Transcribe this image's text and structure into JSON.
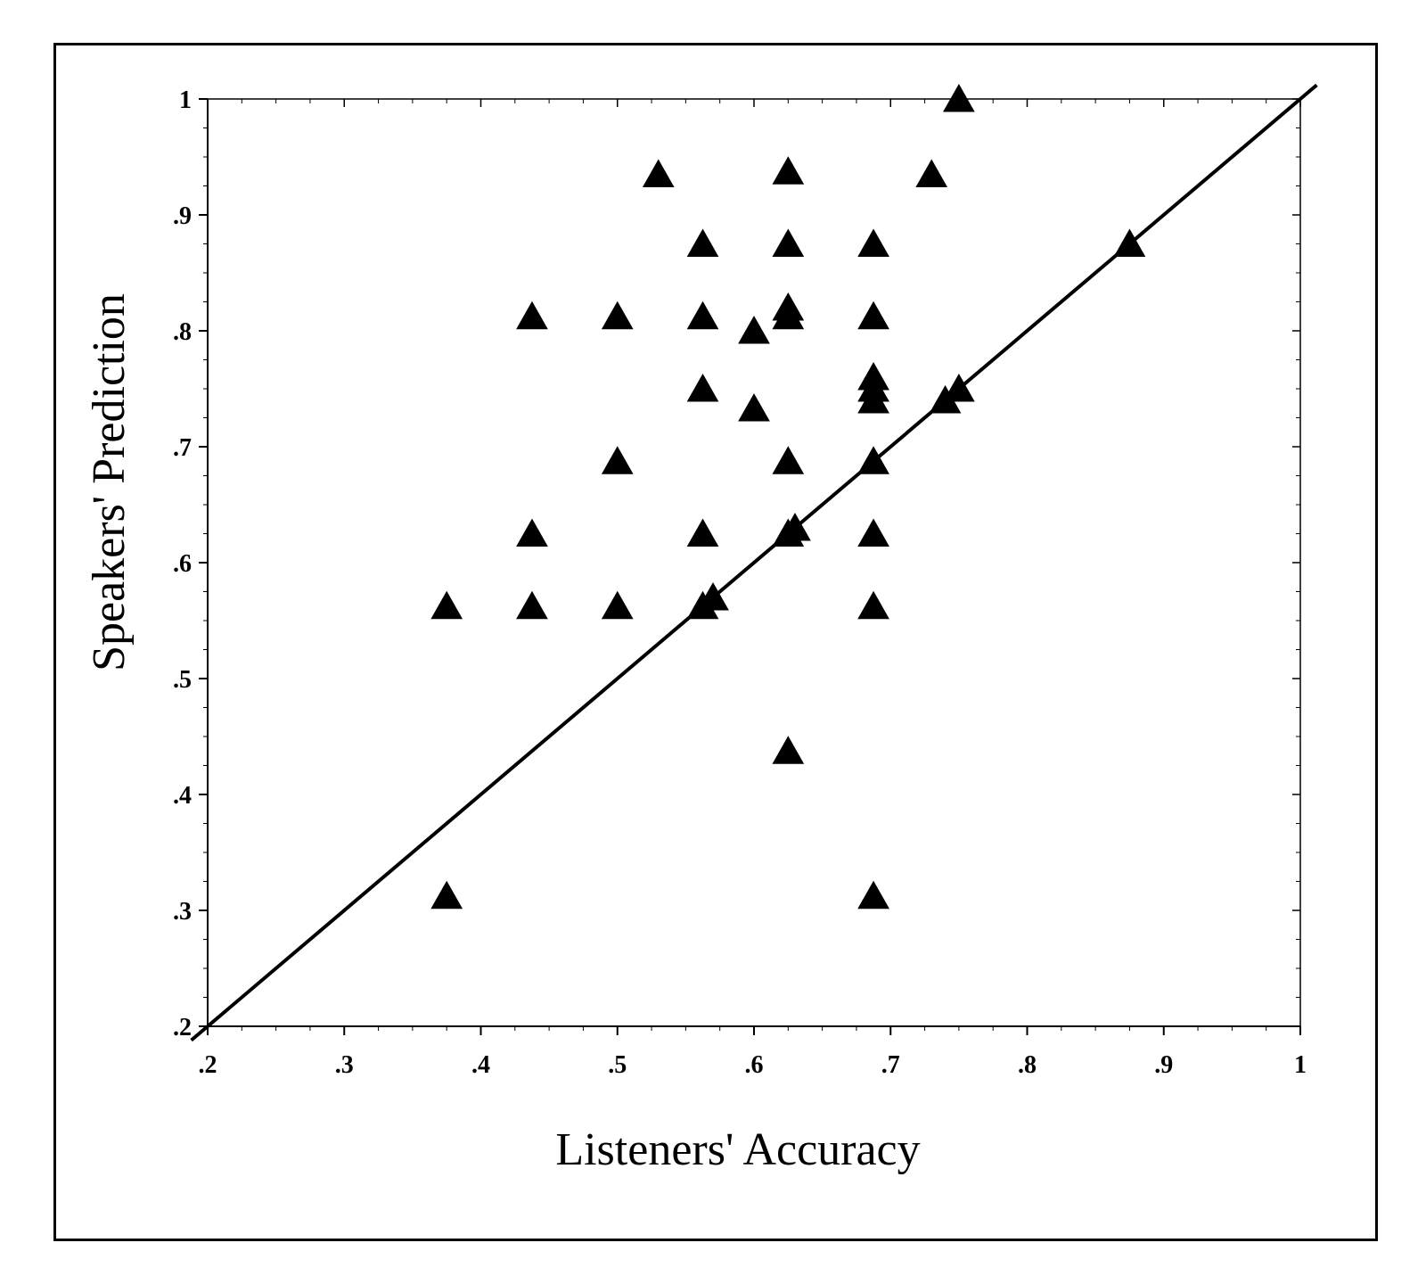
{
  "chart_data": {
    "type": "scatter",
    "title": "",
    "xlabel": "Listeners' Accuracy",
    "ylabel": "Speakers' Prediction",
    "xlim": [
      0.2,
      1.0
    ],
    "ylim": [
      0.2,
      1.0
    ],
    "x_ticks": [
      0.2,
      0.3,
      0.4,
      0.5,
      0.6,
      0.7,
      0.8,
      0.9,
      1.0
    ],
    "x_tick_labels": [
      ".2",
      ".3",
      ".4",
      ".5",
      ".6",
      ".7",
      ".8",
      ".9",
      "1"
    ],
    "y_ticks": [
      0.2,
      0.3,
      0.4,
      0.5,
      0.6,
      0.7,
      0.8,
      0.9,
      1.0
    ],
    "y_tick_labels": [
      ".2",
      ".3",
      ".4",
      ".5",
      ".6",
      ".7",
      ".8",
      ".9",
      "1"
    ],
    "grid": false,
    "marker": "triangle",
    "marker_color": "#000000",
    "reference_line": {
      "from": [
        0.2,
        0.2
      ],
      "to": [
        1.0,
        1.0
      ]
    },
    "points": [
      [
        0.375,
        0.3125
      ],
      [
        0.375,
        0.5625
      ],
      [
        0.4375,
        0.5625
      ],
      [
        0.4375,
        0.625
      ],
      [
        0.4375,
        0.8125
      ],
      [
        0.5,
        0.5625
      ],
      [
        0.5,
        0.6875
      ],
      [
        0.5,
        0.8125
      ],
      [
        0.53,
        0.935
      ],
      [
        0.5625,
        0.5625
      ],
      [
        0.5625,
        0.625
      ],
      [
        0.5625,
        0.75
      ],
      [
        0.5625,
        0.8125
      ],
      [
        0.5625,
        0.875
      ],
      [
        0.57,
        0.57
      ],
      [
        0.6,
        0.733
      ],
      [
        0.6,
        0.8
      ],
      [
        0.625,
        0.4375
      ],
      [
        0.625,
        0.625
      ],
      [
        0.625,
        0.6875
      ],
      [
        0.625,
        0.8125
      ],
      [
        0.625,
        0.82
      ],
      [
        0.625,
        0.875
      ],
      [
        0.625,
        0.9375
      ],
      [
        0.63,
        0.63
      ],
      [
        0.6875,
        0.3125
      ],
      [
        0.6875,
        0.5625
      ],
      [
        0.6875,
        0.625
      ],
      [
        0.6875,
        0.6875
      ],
      [
        0.6875,
        0.74
      ],
      [
        0.6875,
        0.75
      ],
      [
        0.6875,
        0.76
      ],
      [
        0.6875,
        0.8125
      ],
      [
        0.6875,
        0.875
      ],
      [
        0.73,
        0.935
      ],
      [
        0.74,
        0.74
      ],
      [
        0.75,
        0.75
      ],
      [
        0.75,
        1.0
      ],
      [
        0.875,
        0.875
      ]
    ]
  }
}
